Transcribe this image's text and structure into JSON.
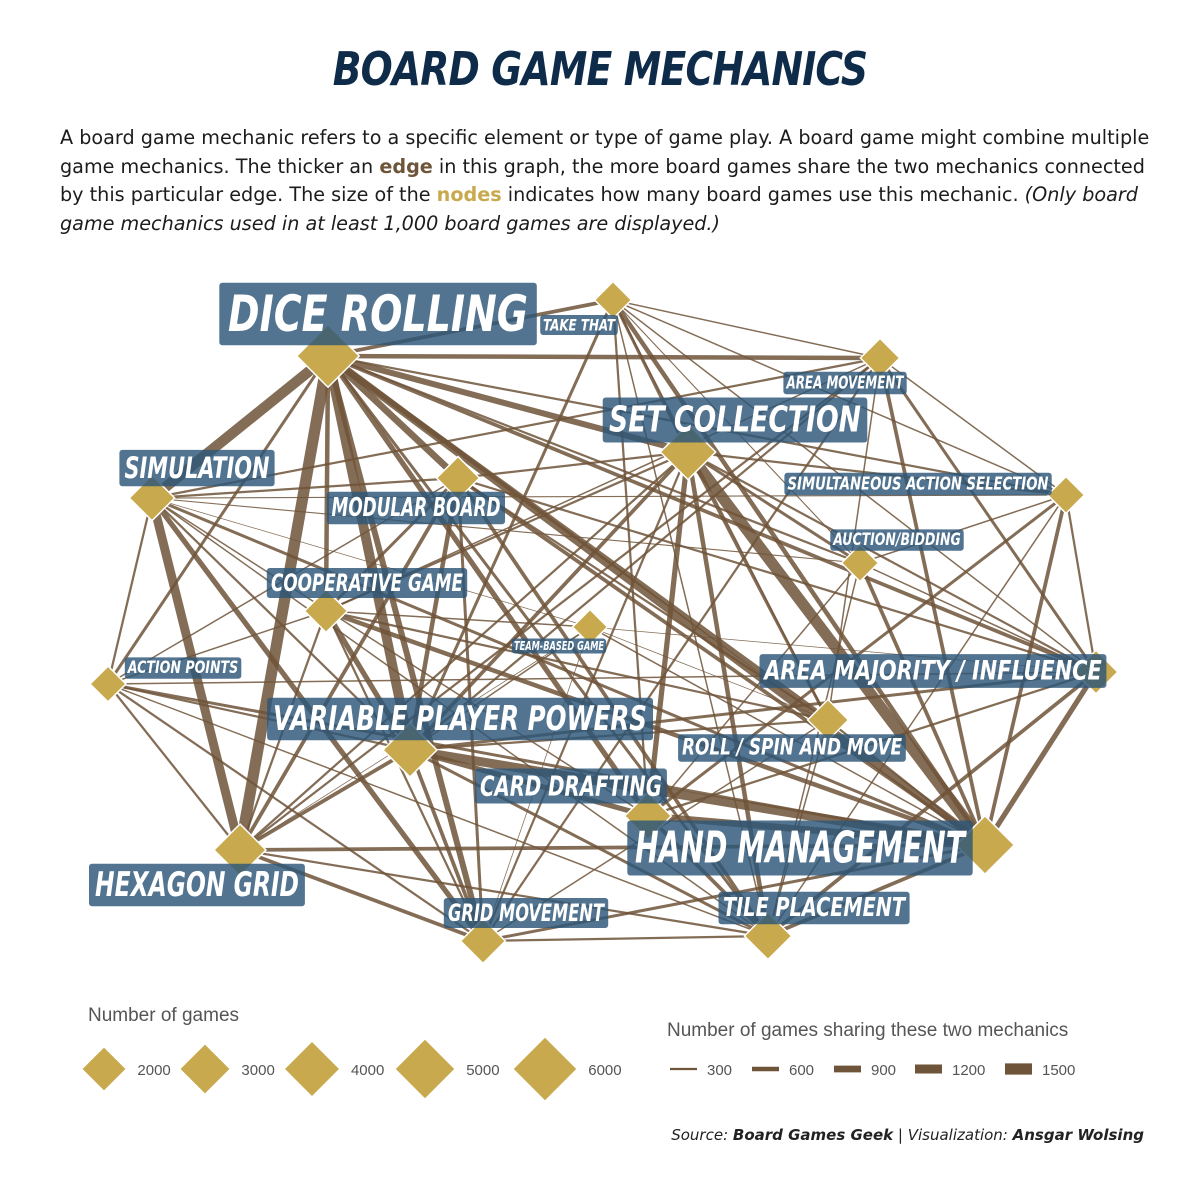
{
  "title": "BOARD GAME MECHANICS",
  "intro": {
    "part1": "A board game mechanic refers to a specific element or type of game play. A board game might combine multiple game mechanics. The thicker an ",
    "edge_word": "edge",
    "part2": " in this graph, the more board games share the two mechanics connected by this particular edge. The size of the ",
    "nodes_word": "nodes",
    "part3": " indicates how many board games use this mechanic. ",
    "note": "(Only board game mechanics used in at least 1,000 board games are displayed.)"
  },
  "colors": {
    "title": "#0e2c4a",
    "edge": "#6e5438",
    "node": "#c9a94d",
    "label_bg": "#2c5577"
  },
  "nodes": [
    {
      "name": "DICE ROLLING",
      "games": 6000
    },
    {
      "name": "TAKE THAT",
      "games": 1200
    },
    {
      "name": "AREA MOVEMENT",
      "games": 1500
    },
    {
      "name": "SET COLLECTION",
      "games": 4300
    },
    {
      "name": "SIMULATION",
      "games": 2400
    },
    {
      "name": "MODULAR BOARD",
      "games": 2000
    },
    {
      "name": "SIMULTANEOUS ACTION SELECTION",
      "games": 1200
    },
    {
      "name": "AUCTION/BIDDING",
      "games": 1200
    },
    {
      "name": "COOPERATIVE GAME",
      "games": 2000
    },
    {
      "name": "TEAM-BASED GAME",
      "games": 1000
    },
    {
      "name": "ACTION POINTS",
      "games": 1100
    },
    {
      "name": "AREA MAJORITY / INFLUENCE",
      "games": 2100
    },
    {
      "name": "VARIABLE PLAYER POWERS",
      "games": 4000
    },
    {
      "name": "ROLL / SPIN AND MOVE",
      "games": 1700
    },
    {
      "name": "CARD DRAFTING",
      "games": 2600
    },
    {
      "name": "HAND MANAGEMENT",
      "games": 5000
    },
    {
      "name": "HEXAGON GRID",
      "games": 3600
    },
    {
      "name": "GRID MOVEMENT",
      "games": 2300
    },
    {
      "name": "TILE PLACEMENT",
      "games": 2700
    }
  ],
  "edges": [
    [
      "DICE ROLLING",
      "HEXAGON GRID",
      1500
    ],
    [
      "DICE ROLLING",
      "SIMULATION",
      1400
    ],
    [
      "DICE ROLLING",
      "VARIABLE PLAYER POWERS",
      1300
    ],
    [
      "DICE ROLLING",
      "CARD DRAFTING",
      700
    ],
    [
      "DICE ROLLING",
      "HAND MANAGEMENT",
      1000
    ],
    [
      "DICE ROLLING",
      "SET COLLECTION",
      800
    ],
    [
      "DICE ROLLING",
      "MODULAR BOARD",
      900
    ],
    [
      "DICE ROLLING",
      "GRID MOVEMENT",
      800
    ],
    [
      "DICE ROLLING",
      "ROLL / SPIN AND MOVE",
      700
    ],
    [
      "DICE ROLLING",
      "AREA MOVEMENT",
      600
    ],
    [
      "DICE ROLLING",
      "TAKE THAT",
      500
    ],
    [
      "DICE ROLLING",
      "COOPERATIVE GAME",
      600
    ],
    [
      "DICE ROLLING",
      "AREA MAJORITY / INFLUENCE",
      500
    ],
    [
      "DICE ROLLING",
      "TILE PLACEMENT",
      400
    ],
    [
      "DICE ROLLING",
      "ACTION POINTS",
      400
    ],
    [
      "DICE ROLLING",
      "SIMULTANEOUS ACTION SELECTION",
      300
    ],
    [
      "DICE ROLLING",
      "AUCTION/BIDDING",
      300
    ],
    [
      "SIMULATION",
      "HEXAGON GRID",
      1200
    ],
    [
      "SIMULATION",
      "GRID MOVEMENT",
      700
    ],
    [
      "SIMULATION",
      "ACTION POINTS",
      300
    ],
    [
      "SIMULATION",
      "VARIABLE PLAYER POWERS",
      300
    ],
    [
      "SIMULATION",
      "HAND MANAGEMENT",
      400
    ],
    [
      "SIMULATION",
      "MODULAR BOARD",
      300
    ],
    [
      "SIMULATION",
      "AREA MOVEMENT",
      300
    ],
    [
      "SIMULATION",
      "CARD DRAFTING",
      200
    ],
    [
      "SIMULATION",
      "TILE PLACEMENT",
      200
    ],
    [
      "SET COLLECTION",
      "HAND MANAGEMENT",
      1500
    ],
    [
      "SET COLLECTION",
      "CARD DRAFTING",
      700
    ],
    [
      "SET COLLECTION",
      "TILE PLACEMENT",
      600
    ],
    [
      "SET COLLECTION",
      "VARIABLE PLAYER POWERS",
      500
    ],
    [
      "SET COLLECTION",
      "TAKE THAT",
      400
    ],
    [
      "SET COLLECTION",
      "AUCTION/BIDDING",
      400
    ],
    [
      "SET COLLECTION",
      "AREA MAJORITY / INFLUENCE",
      300
    ],
    [
      "SET COLLECTION",
      "MODULAR BOARD",
      300
    ],
    [
      "SET COLLECTION",
      "GRID MOVEMENT",
      300
    ],
    [
      "SET COLLECTION",
      "ROLL / SPIN AND MOVE",
      400
    ],
    [
      "SET COLLECTION",
      "SIMULTANEOUS ACTION SELECTION",
      300
    ],
    [
      "SET COLLECTION",
      "COOPERATIVE GAME",
      300
    ],
    [
      "SET COLLECTION",
      "HEXAGON GRID",
      300
    ],
    [
      "HAND MANAGEMENT",
      "VARIABLE PLAYER POWERS",
      1200
    ],
    [
      "HAND MANAGEMENT",
      "CARD DRAFTING",
      900
    ],
    [
      "HAND MANAGEMENT",
      "AREA MAJORITY / INFLUENCE",
      700
    ],
    [
      "HAND MANAGEMENT",
      "TAKE THAT",
      600
    ],
    [
      "HAND MANAGEMENT",
      "TILE PLACEMENT",
      500
    ],
    [
      "HAND MANAGEMENT",
      "AREA MOVEMENT",
      500
    ],
    [
      "HAND MANAGEMENT",
      "SIMULTANEOUS ACTION SELECTION",
      500
    ],
    [
      "HAND MANAGEMENT",
      "AUCTION/BIDDING",
      500
    ],
    [
      "HAND MANAGEMENT",
      "ACTION POINTS",
      400
    ],
    [
      "HAND MANAGEMENT",
      "COOPERATIVE GAME",
      600
    ],
    [
      "HAND MANAGEMENT",
      "MODULAR BOARD",
      500
    ],
    [
      "HAND MANAGEMENT",
      "HEXAGON GRID",
      500
    ],
    [
      "HAND MANAGEMENT",
      "GRID MOVEMENT",
      400
    ],
    [
      "HAND MANAGEMENT",
      "ROLL / SPIN AND MOVE",
      300
    ],
    [
      "HAND MANAGEMENT",
      "TEAM-BASED GAME",
      200
    ],
    [
      "VARIABLE PLAYER POWERS",
      "CARD DRAFTING",
      700
    ],
    [
      "VARIABLE PLAYER POWERS",
      "HEXAGON GRID",
      500
    ],
    [
      "VARIABLE PLAYER POWERS",
      "MODULAR BOARD",
      600
    ],
    [
      "VARIABLE PLAYER POWERS",
      "COOPERATIVE GAME",
      700
    ],
    [
      "VARIABLE PLAYER POWERS",
      "GRID MOVEMENT",
      500
    ],
    [
      "VARIABLE PLAYER POWERS",
      "AREA MAJORITY / INFLUENCE",
      400
    ],
    [
      "VARIABLE PLAYER POWERS",
      "TILE PLACEMENT",
      400
    ],
    [
      "VARIABLE PLAYER POWERS",
      "ACTION POINTS",
      300
    ],
    [
      "VARIABLE PLAYER POWERS",
      "TAKE THAT",
      400
    ],
    [
      "VARIABLE PLAYER POWERS",
      "AREA MOVEMENT",
      300
    ],
    [
      "VARIABLE PLAYER POWERS",
      "ROLL / SPIN AND MOVE",
      300
    ],
    [
      "HEXAGON GRID",
      "GRID MOVEMENT",
      500
    ],
    [
      "HEXAGON GRID",
      "MODULAR BOARD",
      500
    ],
    [
      "HEXAGON GRID",
      "ACTION POINTS",
      300
    ],
    [
      "HEXAGON GRID",
      "TILE PLACEMENT",
      300
    ],
    [
      "HEXAGON GRID",
      "AREA MOVEMENT",
      300
    ],
    [
      "HEXAGON GRID",
      "COOPERATIVE GAME",
      300
    ],
    [
      "MODULAR BOARD",
      "TILE PLACEMENT",
      500
    ],
    [
      "MODULAR BOARD",
      "COOPERATIVE GAME",
      400
    ],
    [
      "MODULAR BOARD",
      "GRID MOVEMENT",
      400
    ],
    [
      "MODULAR BOARD",
      "ROLL / SPIN AND MOVE",
      300
    ],
    [
      "MODULAR BOARD",
      "AREA MAJORITY / INFLUENCE",
      300
    ],
    [
      "CARD DRAFTING",
      "TILE PLACEMENT",
      500
    ],
    [
      "CARD DRAFTING",
      "AREA MAJORITY / INFLUENCE",
      300
    ],
    [
      "CARD DRAFTING",
      "SIMULTANEOUS ACTION SELECTION",
      400
    ],
    [
      "CARD DRAFTING",
      "TAKE THAT",
      300
    ],
    [
      "CARD DRAFTING",
      "AUCTION/BIDDING",
      200
    ],
    [
      "TILE PLACEMENT",
      "AREA MAJORITY / INFLUENCE",
      500
    ],
    [
      "TILE PLACEMENT",
      "GRID MOVEMENT",
      300
    ],
    [
      "AREA MAJORITY / INFLUENCE",
      "AREA MOVEMENT",
      400
    ],
    [
      "AREA MAJORITY / INFLUENCE",
      "AUCTION/BIDDING",
      200
    ],
    [
      "AREA MAJORITY / INFLUENCE",
      "SIMULTANEOUS ACTION SELECTION",
      300
    ],
    [
      "AREA MAJORITY / INFLUENCE",
      "ACTION POINTS",
      200
    ],
    [
      "COOPERATIVE GAME",
      "ACTION POINTS",
      200
    ],
    [
      "COOPERATIVE GAME",
      "GRID MOVEMENT",
      300
    ],
    [
      "COOPERATIVE GAME",
      "ROLL / SPIN AND MOVE",
      300
    ],
    [
      "COOPERATIVE GAME",
      "TEAM-BASED GAME",
      200
    ],
    [
      "COOPERATIVE GAME",
      "AREA MOVEMENT",
      200
    ],
    [
      "AREA MOVEMENT",
      "GRID MOVEMENT",
      300
    ],
    [
      "AREA MOVEMENT",
      "TAKE THAT",
      200
    ],
    [
      "AREA MOVEMENT",
      "SIMULTANEOUS ACTION SELECTION",
      200
    ],
    [
      "AREA MOVEMENT",
      "ROLL / SPIN AND MOVE",
      200
    ],
    [
      "GRID MOVEMENT",
      "ACTION POINTS",
      300
    ],
    [
      "GRID MOVEMENT",
      "ROLL / SPIN AND MOVE",
      200
    ],
    [
      "GRID MOVEMENT",
      "TEAM-BASED GAME",
      100
    ],
    [
      "TAKE THAT",
      "SIMULTANEOUS ACTION SELECTION",
      200
    ],
    [
      "TAKE THAT",
      "AUCTION/BIDDING",
      150
    ],
    [
      "TAKE THAT",
      "ROLL / SPIN AND MOVE",
      200
    ],
    [
      "TAKE THAT",
      "TILE PLACEMENT",
      200
    ],
    [
      "TAKE THAT",
      "AREA MAJORITY / INFLUENCE",
      200
    ],
    [
      "AUCTION/BIDDING",
      "SIMULTANEOUS ACTION SELECTION",
      200
    ],
    [
      "AUCTION/BIDDING",
      "TILE PLACEMENT",
      200
    ],
    [
      "ROLL / SPIN AND MOVE",
      "TEAM-BASED GAME",
      100
    ],
    [
      "ROLL / SPIN AND MOVE",
      "TILE PLACEMENT",
      200
    ],
    [
      "TEAM-BASED GAME",
      "VARIABLE PLAYER POWERS",
      200
    ],
    [
      "TEAM-BASED GAME",
      "AREA MAJORITY / INFLUENCE",
      100
    ],
    [
      "TEAM-BASED GAME",
      "SIMULATION",
      100
    ],
    [
      "TEAM-BASED GAME",
      "HEXAGON GRID",
      100
    ],
    [
      "ACTION POINTS",
      "TILE PLACEMENT",
      200
    ],
    [
      "ACTION POINTS",
      "MODULAR BOARD",
      200
    ],
    [
      "SIMULTANEOUS ACTION SELECTION",
      "TILE PLACEMENT",
      200
    ],
    [
      "SIMULTANEOUS ACTION SELECTION",
      "SIMULATION",
      150
    ],
    [
      "AUCTION/BIDDING",
      "SIMULATION",
      150
    ]
  ],
  "legend_nodes": {
    "title": "Number of games",
    "items": [
      {
        "value": 2000,
        "label": "2000"
      },
      {
        "value": 3000,
        "label": "3000"
      },
      {
        "value": 4000,
        "label": "4000"
      },
      {
        "value": 5000,
        "label": "5000"
      },
      {
        "value": 6000,
        "label": "6000"
      }
    ]
  },
  "legend_edges": {
    "title": "Number of games sharing these two mechanics",
    "items": [
      {
        "value": 300,
        "label": "300"
      },
      {
        "value": 600,
        "label": "600"
      },
      {
        "value": 900,
        "label": "900"
      },
      {
        "value": 1200,
        "label": "1200"
      },
      {
        "value": 1500,
        "label": "1500"
      }
    ]
  },
  "source": {
    "source_prefix": "Source: ",
    "source_name": "Board Games Geek",
    "separator": " | ",
    "viz_prefix": "Visualization: ",
    "viz_name": "Ansgar Wolsing"
  }
}
